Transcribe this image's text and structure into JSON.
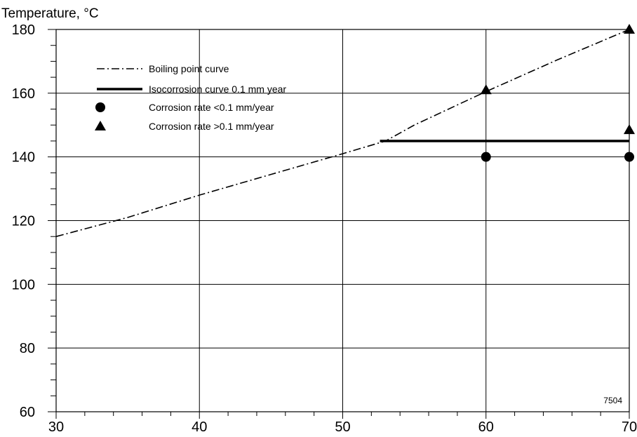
{
  "chart_data": {
    "type": "line",
    "title": "",
    "ylabel": "Temperature, °C",
    "xlabel": "",
    "xlim": [
      30,
      70
    ],
    "ylim": [
      60,
      180
    ],
    "x_ticks": [
      30,
      40,
      50,
      60,
      70
    ],
    "y_ticks": [
      60,
      80,
      100,
      120,
      140,
      160,
      180
    ],
    "grid": true,
    "legend_position": "top-left",
    "figure_id": "7504",
    "series": [
      {
        "name": "Boiling point curve",
        "style": "dash-dot",
        "x": [
          30,
          35,
          40,
          45,
          50,
          53,
          55,
          60,
          65,
          70
        ],
        "y": [
          115,
          121,
          128,
          134.5,
          141,
          145,
          150,
          160.5,
          170.5,
          180
        ]
      },
      {
        "name": "Isocorrosion curve 0.1 mm year",
        "style": "solid-thick",
        "x": [
          52.6,
          70
        ],
        "y": [
          145,
          145
        ]
      },
      {
        "name": "Corrosion rate <0.1 mm/year",
        "style": "circle-marker",
        "x": [
          60,
          70
        ],
        "y": [
          140,
          140
        ]
      },
      {
        "name": "Corrosion rate >0.1 mm/year",
        "style": "triangle-marker",
        "x": [
          60,
          70,
          70
        ],
        "y": [
          161,
          148.5,
          180
        ]
      }
    ]
  }
}
